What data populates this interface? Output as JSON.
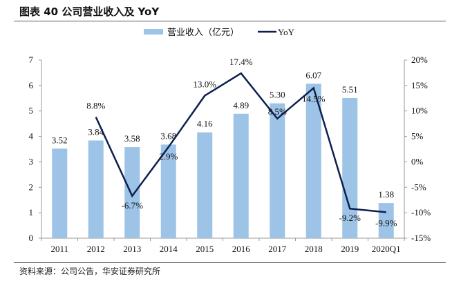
{
  "title": "图表 40 公司营业收入及 YoY",
  "source": "资料来源：公司公告，华安证券研究所",
  "colors": {
    "bar": "#9DC3E6",
    "line": "#0D1F4F"
  },
  "chart_data": {
    "type": "bar+line",
    "categories": [
      "2011",
      "2012",
      "2013",
      "2014",
      "2015",
      "2016",
      "2017",
      "2018",
      "2019",
      "2020Q1"
    ],
    "series": [
      {
        "name": "营业收入（亿元）",
        "type": "bar",
        "axis": "left",
        "values": [
          3.52,
          3.84,
          3.58,
          3.68,
          4.16,
          4.89,
          5.3,
          6.07,
          5.51,
          1.38
        ],
        "labels": [
          "3.52",
          "3.84",
          "3.58",
          "3.68",
          "4.16",
          "4.89",
          "5.30",
          "6.07",
          "5.51",
          "1.38"
        ]
      },
      {
        "name": "YoY",
        "type": "line",
        "axis": "right",
        "values": [
          null,
          8.8,
          -6.7,
          2.9,
          13.0,
          17.4,
          8.5,
          14.5,
          -9.2,
          -9.9
        ],
        "labels": [
          "",
          "8.8%",
          "-6.7%",
          "2.9%",
          "13.0%",
          "17.4%",
          "8.5%",
          "14.5%",
          "-9.2%",
          "-9.9%"
        ]
      }
    ],
    "yleft": {
      "range": [
        0,
        7
      ],
      "ticks": [
        "0",
        "1",
        "2",
        "3",
        "4",
        "5",
        "6",
        "7"
      ]
    },
    "yright": {
      "range": [
        -15,
        20
      ],
      "ticks": [
        "-15%",
        "-10%",
        "-5%",
        "0%",
        "5%",
        "10%",
        "15%",
        "20%"
      ]
    },
    "legend": "top-center",
    "grid": false
  }
}
